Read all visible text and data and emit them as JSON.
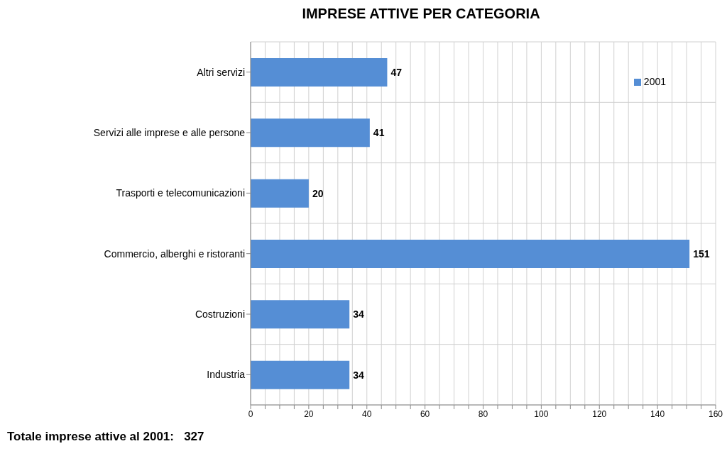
{
  "chart_data": {
    "type": "bar",
    "orientation": "horizontal",
    "title": "IMPRESE ATTIVE PER CATEGORIA",
    "categories": [
      "Altri servizi",
      "Servizi alle imprese e alle persone",
      "Trasporti e telecomunicazioni",
      "Commercio, alberghi e ristoranti",
      "Costruzioni",
      "Industria"
    ],
    "series": [
      {
        "name": "2001",
        "color": "#558ed5",
        "values": [
          47,
          41,
          20,
          151,
          34,
          34
        ]
      }
    ],
    "xlim": [
      0,
      160
    ],
    "xticks": [
      0,
      {
        "value": 5,
        "label": null
      },
      {
        "value": 10,
        "label": null
      },
      {
        "value": 15,
        "label": null
      },
      20,
      {
        "value": 25,
        "label": null
      },
      {
        "value": 30,
        "label": null
      },
      {
        "value": 35,
        "label": null
      },
      40,
      {
        "value": 45,
        "label": null
      },
      {
        "value": 50,
        "label": null
      },
      {
        "value": 55,
        "label": null
      },
      60,
      {
        "value": 65,
        "label": null
      },
      {
        "value": 70,
        "label": null
      },
      {
        "value": 75,
        "label": null
      },
      80,
      {
        "value": 85,
        "label": null
      },
      {
        "value": 90,
        "label": null
      },
      {
        "value": 95,
        "label": null
      },
      100,
      {
        "value": 105,
        "label": null
      },
      {
        "value": 110,
        "label": null
      },
      {
        "value": 115,
        "label": null
      },
      120,
      {
        "value": 125,
        "label": null
      },
      {
        "value": 130,
        "label": null
      },
      {
        "value": 135,
        "label": null
      },
      140,
      {
        "value": 145,
        "label": null
      },
      {
        "value": 150,
        "label": null
      },
      {
        "value": 155,
        "label": null
      },
      160
    ],
    "grid": true,
    "legend": "top right",
    "data_labels": true,
    "annotations": [
      "Totale imprese attive al 2001:   327"
    ]
  }
}
